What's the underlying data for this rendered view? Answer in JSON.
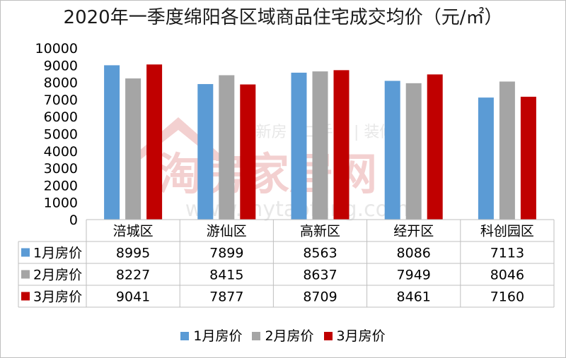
{
  "title": "2020年一季度绵阳各区域商品住宅成交均价（元/㎡）",
  "watermark": {
    "tagline": "新房 | 二手房 | 装修",
    "brand": "淘房家居网",
    "url": "www.mytaofang.com"
  },
  "chart_data": {
    "type": "bar",
    "title": "2020年一季度绵阳各区域商品住宅成交均价（元/㎡）",
    "xlabel": "",
    "ylabel": "",
    "ylim": [
      0,
      10000
    ],
    "yticks": [
      0,
      1000,
      2000,
      3000,
      4000,
      5000,
      6000,
      7000,
      8000,
      9000,
      10000
    ],
    "grid": false,
    "legend_position": "bottom",
    "data_table": true,
    "categories": [
      "涪城区",
      "游仙区",
      "高新区",
      "经开区",
      "科创园区"
    ],
    "series": [
      {
        "name": "1月房价",
        "color": "#5b9bd5",
        "values": [
          8995,
          7899,
          8563,
          8086,
          7113
        ]
      },
      {
        "name": "2月房价",
        "color": "#a5a5a5",
        "values": [
          8227,
          8415,
          8637,
          7949,
          8046
        ]
      },
      {
        "name": "3月房价",
        "color": "#c00000",
        "values": [
          9041,
          7877,
          8709,
          8461,
          7160
        ]
      }
    ]
  }
}
